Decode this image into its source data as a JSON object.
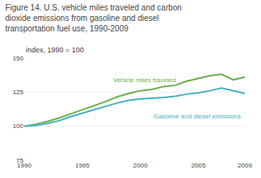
{
  "chart_data": {
    "type": "line",
    "title": "Figure 14. U.S. vehicle miles traveled and carbon\ndioxide emissions from gasoline and diesel\ntransportation fuel use, 1990-2009",
    "ylabel": "index, 1990 = 100",
    "x": [
      1990,
      1991,
      1992,
      1993,
      1994,
      1995,
      1996,
      1997,
      1998,
      1999,
      2000,
      2001,
      2002,
      2003,
      2004,
      2005,
      2006,
      2007,
      2008,
      2009
    ],
    "series": [
      {
        "name": "Vehicle miles traveled",
        "color": "#6ab04c",
        "values": [
          100,
          101.5,
          103.5,
          106,
          109,
          112,
          115,
          118,
          121.5,
          124,
          126,
          127,
          129,
          130,
          133,
          135,
          137,
          138,
          134,
          136
        ]
      },
      {
        "name": "Gasoline and diesel emissions",
        "color": "#48b0c1",
        "values": [
          100,
          100.5,
          102,
          104,
          107,
          109.5,
          112,
          114.5,
          117,
          119,
          120,
          120.5,
          121,
          122,
          123.5,
          124.5,
          126,
          128,
          126,
          124
        ]
      }
    ],
    "annotations": [
      {
        "text": "Vehicle miles traveled",
        "x": 1997.5,
        "y": 130,
        "color": "#6ab04c"
      },
      {
        "text": "Gasoline and diesel emissions",
        "x": 2001.0,
        "y": 111,
        "color": "#48b0c1"
      }
    ],
    "xlim": [
      1990,
      2009
    ],
    "xticks": [
      1990,
      1995,
      2000,
      2005,
      2009
    ],
    "ylim": [
      75,
      150
    ],
    "yticks": [
      75,
      100,
      125,
      150
    ],
    "grid": "y"
  }
}
